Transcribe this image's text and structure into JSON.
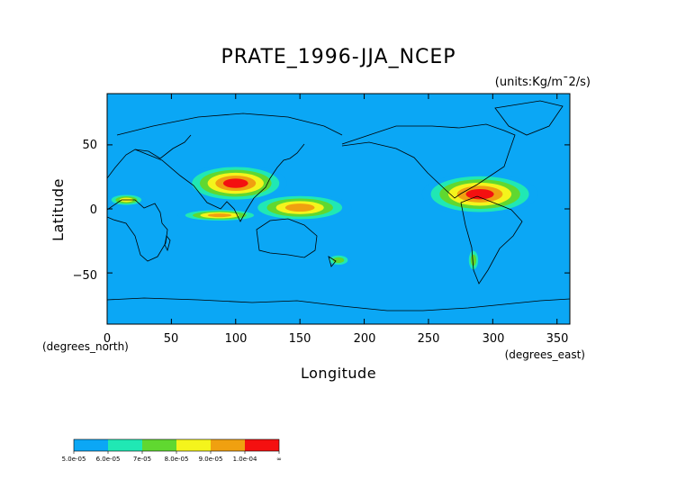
{
  "chart_data": {
    "type": "heatmap",
    "title": "PRATE_1996-JJA_NCEP",
    "units": "(units:Kg/m¯2/s)",
    "xlabel": "Longitude",
    "ylabel": "Latitude",
    "x_axis_note": "(degrees_east)",
    "y_axis_note": "(degrees_north)",
    "xlim": [
      0,
      360
    ],
    "ylim": [
      -90,
      90
    ],
    "x_ticks": [
      "0",
      "50",
      "100",
      "150",
      "200",
      "250",
      "300",
      "350"
    ],
    "y_ticks": [
      "50",
      "0",
      "−50"
    ],
    "background_color": "#0ba7f5",
    "levels": [
      {
        "label": "5.0e-05",
        "color": "#0ba7f5"
      },
      {
        "label": "6.0e-05",
        "color": "#20e8b4"
      },
      {
        "label": "7e-05",
        "color": "#60d830"
      },
      {
        "label": "8.0e-05",
        "color": "#f4f41c"
      },
      {
        "label": "9.0e-05",
        "color": "#f0a010"
      },
      {
        "label": "1.0e-04",
        "color": "#f41010"
      },
      {
        "label": "∞",
        "color": ""
      }
    ],
    "regions": [
      {
        "lon": [
          60,
          140
        ],
        "lat": [
          5,
          35
        ],
        "level": 6
      },
      {
        "lon": [
          110,
          190
        ],
        "lat": [
          -10,
          12
        ],
        "level": 5
      },
      {
        "lon": [
          55,
          120
        ],
        "lat": [
          -10,
          0
        ],
        "level": 5
      },
      {
        "lon": [
          245,
          335
        ],
        "lat": [
          -5,
          28
        ],
        "level": 6
      },
      {
        "lon": [
          0,
          30
        ],
        "lat": [
          2,
          12
        ],
        "level": 4
      },
      {
        "lon": [
          170,
          190
        ],
        "lat": [
          -45,
          -35
        ],
        "level": 3
      },
      {
        "lon": [
          280,
          290
        ],
        "lat": [
          -50,
          -30
        ],
        "level": 3
      }
    ]
  }
}
